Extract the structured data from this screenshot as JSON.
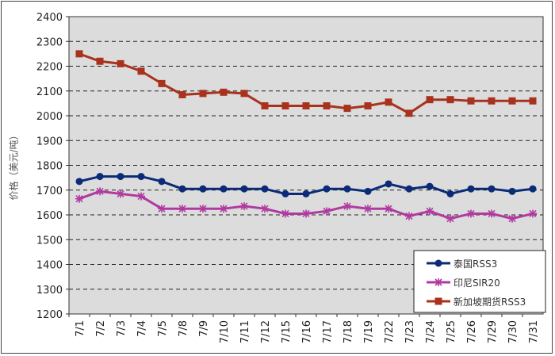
{
  "chart_data": {
    "type": "line",
    "title": "",
    "xlabel": "",
    "ylabel": "价格（美元/吨）",
    "ylim": [
      1200,
      2400
    ],
    "yticks": [
      1200,
      1300,
      1400,
      1500,
      1600,
      1700,
      1800,
      1900,
      2000,
      2100,
      2200,
      2300,
      2400
    ],
    "grid": true,
    "legend_position": "bottom-right",
    "categories": [
      "7/1",
      "7/2",
      "7/3",
      "7/4",
      "7/5",
      "7/8",
      "7/9",
      "7/10",
      "7/11",
      "7/12",
      "7/15",
      "7/16",
      "7/17",
      "7/18",
      "7/19",
      "7/22",
      "7/23",
      "7/24",
      "7/25",
      "7/26",
      "7/29",
      "7/30",
      "7/31"
    ],
    "series": [
      {
        "name": "泰国RSS3",
        "color": "#0b2a78",
        "marker": "circle",
        "values": [
          1735,
          1755,
          1755,
          1755,
          1735,
          1705,
          1705,
          1705,
          1705,
          1705,
          1685,
          1685,
          1705,
          1705,
          1695,
          1725,
          1705,
          1715,
          1685,
          1705,
          1705,
          1695,
          1705
        ]
      },
      {
        "name": "印尼SIR20",
        "color": "#b03aa0",
        "marker": "asterisk",
        "values": [
          1665,
          1695,
          1685,
          1675,
          1625,
          1625,
          1625,
          1625,
          1635,
          1625,
          1605,
          1605,
          1615,
          1635,
          1625,
          1625,
          1595,
          1615,
          1585,
          1605,
          1605,
          1585,
          1605
        ]
      },
      {
        "name": "新加坡期货RSS3",
        "color": "#a8321e",
        "marker": "square",
        "values": [
          2250,
          2220,
          2210,
          2180,
          2130,
          2085,
          2090,
          2095,
          2090,
          2040,
          2040,
          2040,
          2040,
          2030,
          2040,
          2055,
          2010,
          2065,
          2065,
          2060,
          2060,
          2060,
          2060
        ]
      }
    ]
  }
}
